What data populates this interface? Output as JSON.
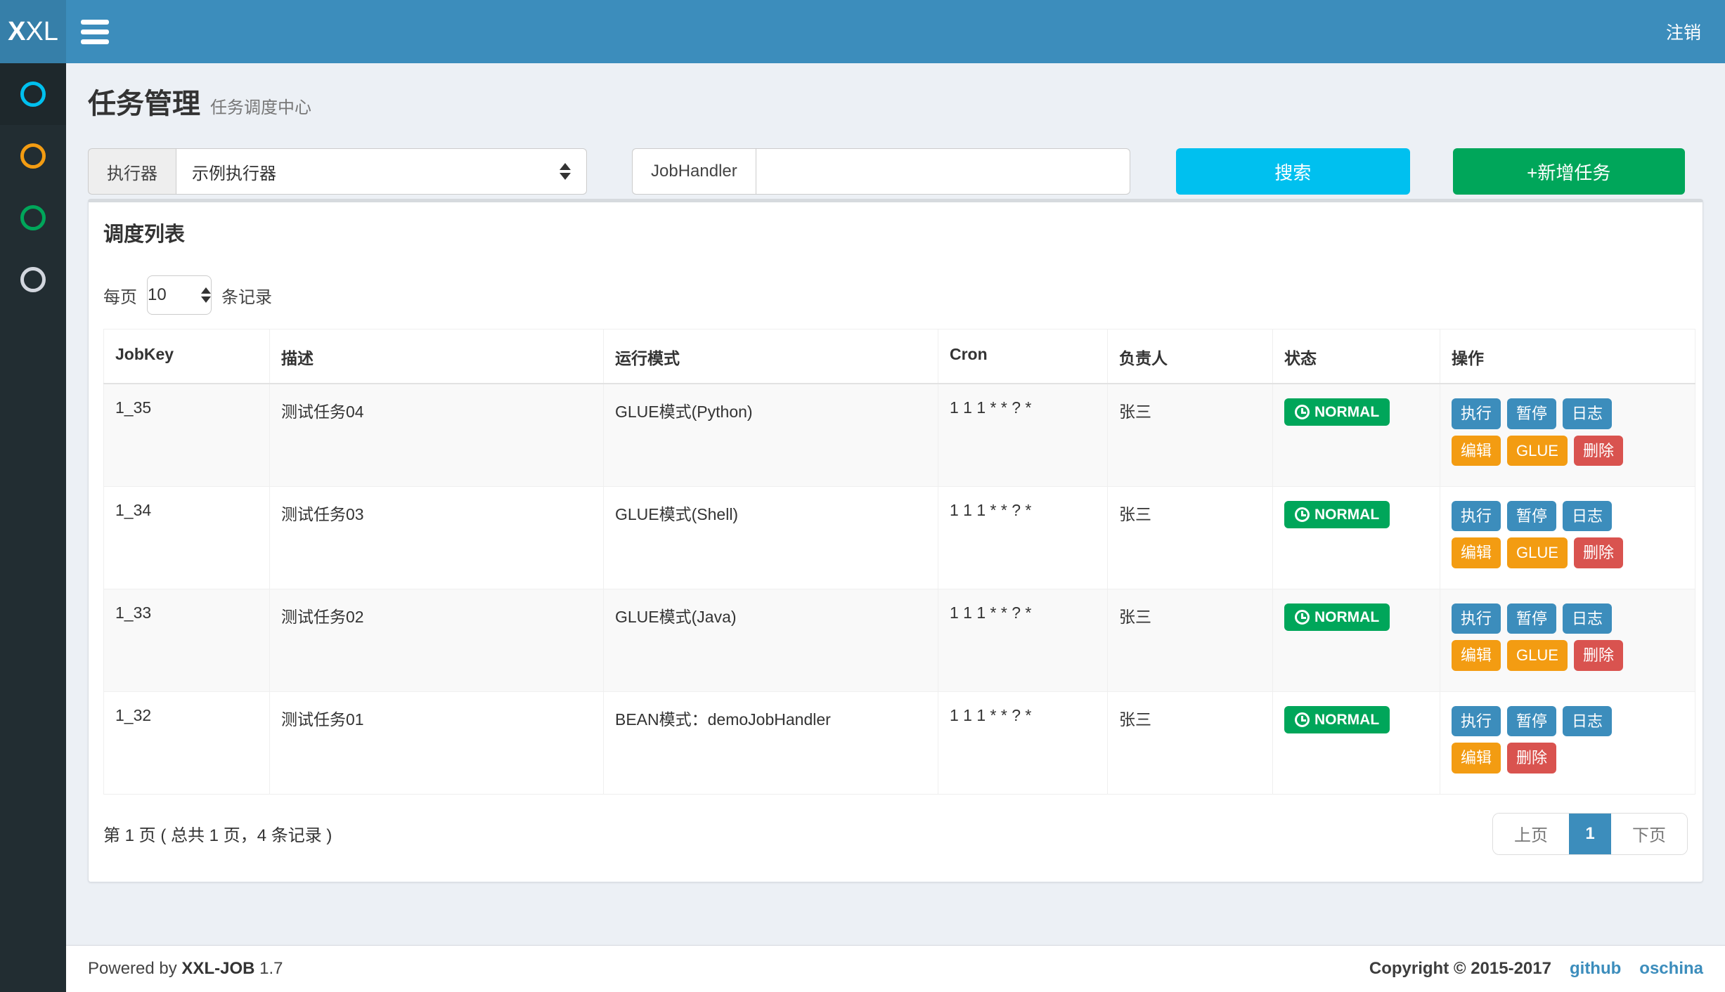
{
  "navbar": {
    "logo_bold": "X",
    "logo_rest": "XL",
    "logout_label": "注销"
  },
  "sidebar": {
    "items": [
      {
        "name": "dashboard",
        "icon": "circle-o-icon",
        "color": "#00c0ef",
        "active": true
      },
      {
        "name": "job-manage",
        "icon": "circle-o-icon",
        "color": "#f39c12",
        "active": false
      },
      {
        "name": "job-log",
        "icon": "circle-o-icon",
        "color": "#00a65a",
        "active": false
      },
      {
        "name": "help",
        "icon": "circle-o-icon",
        "color": "#d2d6de",
        "active": false
      }
    ]
  },
  "header": {
    "title": "任务管理",
    "subtitle": "任务调度中心"
  },
  "filters": {
    "executor_label": "执行器",
    "executor_value": "示例执行器",
    "jobhandler_label": "JobHandler",
    "jobhandler_value": "",
    "search_label": "搜索",
    "add_label": "+新增任务"
  },
  "panel": {
    "title": "调度列表",
    "page_size_prefix": "每页",
    "page_size_value": "10",
    "page_size_suffix": "条记录"
  },
  "table": {
    "headers": [
      "JobKey",
      "描述",
      "运行模式",
      "Cron",
      "负责人",
      "状态",
      "操作"
    ],
    "rows": [
      {
        "jobkey": "1_35",
        "desc": "测试任务04",
        "mode": "GLUE模式(Python)",
        "cron": "1 1 1 * * ? *",
        "owner": "张三",
        "status": "NORMAL",
        "actions": [
          {
            "name": "run",
            "label": "执行",
            "type": "primary"
          },
          {
            "name": "pause",
            "label": "暂停",
            "type": "primary"
          },
          {
            "name": "log",
            "label": "日志",
            "type": "primary"
          },
          {
            "name": "edit",
            "label": "编辑",
            "type": "warning"
          },
          {
            "name": "glue",
            "label": "GLUE",
            "type": "warning"
          },
          {
            "name": "delete",
            "label": "删除",
            "type": "danger"
          }
        ]
      },
      {
        "jobkey": "1_34",
        "desc": "测试任务03",
        "mode": "GLUE模式(Shell)",
        "cron": "1 1 1 * * ? *",
        "owner": "张三",
        "status": "NORMAL",
        "actions": [
          {
            "name": "run",
            "label": "执行",
            "type": "primary"
          },
          {
            "name": "pause",
            "label": "暂停",
            "type": "primary"
          },
          {
            "name": "log",
            "label": "日志",
            "type": "primary"
          },
          {
            "name": "edit",
            "label": "编辑",
            "type": "warning"
          },
          {
            "name": "glue",
            "label": "GLUE",
            "type": "warning"
          },
          {
            "name": "delete",
            "label": "删除",
            "type": "danger"
          }
        ]
      },
      {
        "jobkey": "1_33",
        "desc": "测试任务02",
        "mode": "GLUE模式(Java)",
        "cron": "1 1 1 * * ? *",
        "owner": "张三",
        "status": "NORMAL",
        "actions": [
          {
            "name": "run",
            "label": "执行",
            "type": "primary"
          },
          {
            "name": "pause",
            "label": "暂停",
            "type": "primary"
          },
          {
            "name": "log",
            "label": "日志",
            "type": "primary"
          },
          {
            "name": "edit",
            "label": "编辑",
            "type": "warning"
          },
          {
            "name": "glue",
            "label": "GLUE",
            "type": "warning"
          },
          {
            "name": "delete",
            "label": "删除",
            "type": "danger"
          }
        ]
      },
      {
        "jobkey": "1_32",
        "desc": "测试任务01",
        "mode": "BEAN模式：demoJobHandler",
        "cron": "1 1 1 * * ? *",
        "owner": "张三",
        "status": "NORMAL",
        "actions": [
          {
            "name": "run",
            "label": "执行",
            "type": "primary"
          },
          {
            "name": "pause",
            "label": "暂停",
            "type": "primary"
          },
          {
            "name": "log",
            "label": "日志",
            "type": "primary"
          },
          {
            "name": "edit",
            "label": "编辑",
            "type": "warning"
          },
          {
            "name": "delete",
            "label": "删除",
            "type": "danger"
          }
        ]
      }
    ]
  },
  "pagination": {
    "summary": "第 1 页 ( 总共 1 页，4 条记录 )",
    "prev_label": "上页",
    "current_page": "1",
    "next_label": "下页"
  },
  "footer": {
    "powered_prefix": "Powered by",
    "brand": "XXL-JOB",
    "version": "1.7",
    "copyright": "Copyright © 2015-2017",
    "links": [
      {
        "name": "github",
        "label": "github"
      },
      {
        "name": "oschina",
        "label": "oschina"
      }
    ]
  },
  "colors": {
    "navbar_bg": "#3c8dbc",
    "logo_bg": "#367fa9",
    "sidebar_bg": "#222d32",
    "sidebar_active_bg": "#1e282c",
    "content_bg": "#ecf0f5",
    "search_button": "#00c0ef",
    "add_button": "#00a65a",
    "status_badge": "#00a65a",
    "action_primary": "#3c8dbc",
    "action_warning": "#f39c12",
    "action_danger": "#d9534f",
    "pagination_active": "#3c8dbc",
    "link": "#3c8dbc"
  }
}
